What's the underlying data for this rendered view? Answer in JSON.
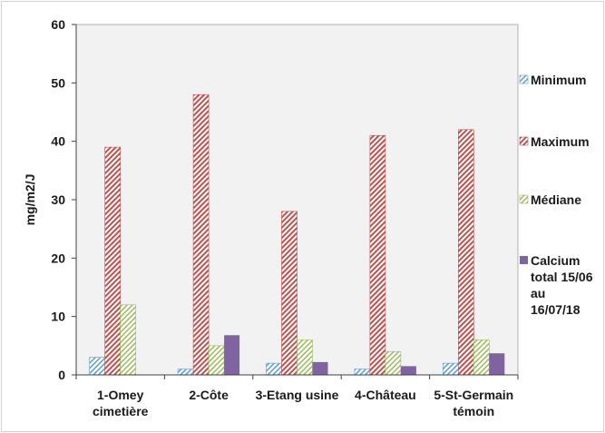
{
  "chart_data": {
    "type": "bar",
    "categories": [
      [
        "1-Omey",
        "cimetière"
      ],
      [
        "2-Côte"
      ],
      [
        "3-Etang usine"
      ],
      [
        "4-Château"
      ],
      [
        "5-St-Germain",
        "témoin"
      ]
    ],
    "series": [
      {
        "name": "Minimum",
        "values": [
          3,
          1,
          2,
          1,
          2
        ],
        "color": "#5b9bd5",
        "pattern": "diag-light"
      },
      {
        "name": "Maximum",
        "values": [
          39,
          48,
          28,
          41,
          42
        ],
        "color": "#c0504d",
        "pattern": "diag-dense"
      },
      {
        "name": "Médiane",
        "values": [
          12,
          5,
          6,
          4,
          6
        ],
        "color": "#9bbb59",
        "pattern": "diag-light"
      },
      {
        "name": [
          "Calcium",
          "total 15/06",
          "au",
          "16/07/18"
        ],
        "values": [
          null,
          6.8,
          2.2,
          1.5,
          3.7
        ],
        "color": "#8064a2",
        "pattern": "solid"
      }
    ],
    "title": "",
    "xlabel": "",
    "ylabel": "mg/m2/J",
    "ylim": [
      0,
      60
    ],
    "yticks": [
      0,
      10,
      20,
      30,
      40,
      50,
      60
    ],
    "grid": false,
    "legend_position": "right",
    "plot_background": "#f2f2f2"
  }
}
